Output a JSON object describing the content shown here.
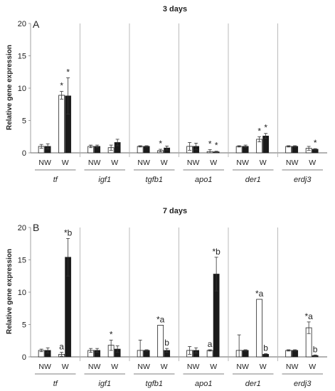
{
  "chart_data": [
    {
      "type": "bar",
      "title": "3 days",
      "panel_label": "A",
      "ylabel": "Relative gene expression",
      "ylim": [
        0,
        20
      ],
      "yticks": [
        "0",
        "5",
        "10",
        "15",
        "20"
      ],
      "genes": [
        "tf",
        "igf1",
        "tgfb1",
        "apo1",
        "der1",
        "erdj3"
      ],
      "conditions": [
        "NW",
        "W"
      ],
      "series": [
        {
          "name": "",
          "color": "#ffffff",
          "values": [
            [
              1.0,
              8.9
            ],
            [
              1.0,
              0.8
            ],
            [
              1.0,
              0.35
            ],
            [
              1.0,
              0.2
            ],
            [
              1.0,
              2.1
            ],
            [
              1.0,
              0.7
            ]
          ],
          "errors": [
            [
              0.3,
              0.6
            ],
            [
              0.2,
              0.4
            ],
            [
              0.1,
              0.2
            ],
            [
              0.6,
              0.3
            ],
            [
              0.1,
              0.4
            ],
            [
              0.1,
              0.3
            ]
          ],
          "marks": [
            [
              "",
              "*"
            ],
            [
              "",
              ""
            ],
            [
              "",
              "*"
            ],
            [
              "",
              "*"
            ],
            [
              "",
              "*"
            ],
            [
              "",
              ""
            ]
          ]
        },
        {
          "name": "",
          "color": "#1a1a1a",
          "values": [
            [
              1.0,
              8.8
            ],
            [
              1.0,
              1.6
            ],
            [
              1.0,
              0.75
            ],
            [
              1.0,
              0.15
            ],
            [
              1.0,
              2.6
            ],
            [
              1.0,
              0.55
            ]
          ],
          "errors": [
            [
              0.4,
              2.8
            ],
            [
              0.2,
              0.5
            ],
            [
              0.1,
              0.3
            ],
            [
              0.5,
              0.1
            ],
            [
              0.2,
              0.4
            ],
            [
              0.1,
              0.1
            ]
          ],
          "marks": [
            [
              "",
              "*"
            ],
            [
              "",
              ""
            ],
            [
              "",
              ""
            ],
            [
              "",
              "*"
            ],
            [
              "",
              "*"
            ],
            [
              "",
              "*"
            ]
          ]
        }
      ]
    },
    {
      "type": "bar",
      "title": "7 days",
      "panel_label": "B",
      "ylabel": "Relative gene expression",
      "ylim": [
        0,
        20
      ],
      "yticks": [
        "0",
        "5",
        "10",
        "15",
        "20"
      ],
      "genes": [
        "tf",
        "igf1",
        "tgfb1",
        "apo1",
        "der1",
        "erdj3"
      ],
      "conditions": [
        "NW",
        "W"
      ],
      "series": [
        {
          "name": "",
          "color": "#ffffff",
          "values": [
            [
              1.0,
              0.4
            ],
            [
              1.0,
              1.8
            ],
            [
              1.0,
              4.9
            ],
            [
              1.0,
              1.0
            ],
            [
              1.0,
              8.9
            ],
            [
              1.0,
              4.5
            ]
          ],
          "errors": [
            [
              0.2,
              0.3
            ],
            [
              0.3,
              0.8
            ],
            [
              1.6,
              0.0
            ],
            [
              0.6,
              0.1
            ],
            [
              2.4,
              0.0
            ],
            [
              0.1,
              0.9
            ]
          ],
          "marks": [
            [
              "",
              "a"
            ],
            [
              "",
              "*"
            ],
            [
              "",
              "*a"
            ],
            [
              "",
              "a"
            ],
            [
              "",
              "*a"
            ],
            [
              "",
              "*a"
            ]
          ]
        },
        {
          "name": "",
          "color": "#1a1a1a",
          "values": [
            [
              1.0,
              15.4
            ],
            [
              1.0,
              1.2
            ],
            [
              1.0,
              1.0
            ],
            [
              1.0,
              12.8
            ],
            [
              1.0,
              0.4
            ],
            [
              1.0,
              0.2
            ]
          ],
          "errors": [
            [
              0.4,
              2.9
            ],
            [
              0.3,
              0.5
            ],
            [
              0.1,
              0.3
            ],
            [
              0.4,
              2.6
            ],
            [
              0.1,
              0.1
            ],
            [
              0.1,
              0.1
            ]
          ],
          "marks": [
            [
              "",
              "*b"
            ],
            [
              "",
              ""
            ],
            [
              "",
              "b"
            ],
            [
              "",
              "*b"
            ],
            [
              "",
              "b"
            ],
            [
              "",
              "b"
            ]
          ]
        }
      ]
    }
  ]
}
